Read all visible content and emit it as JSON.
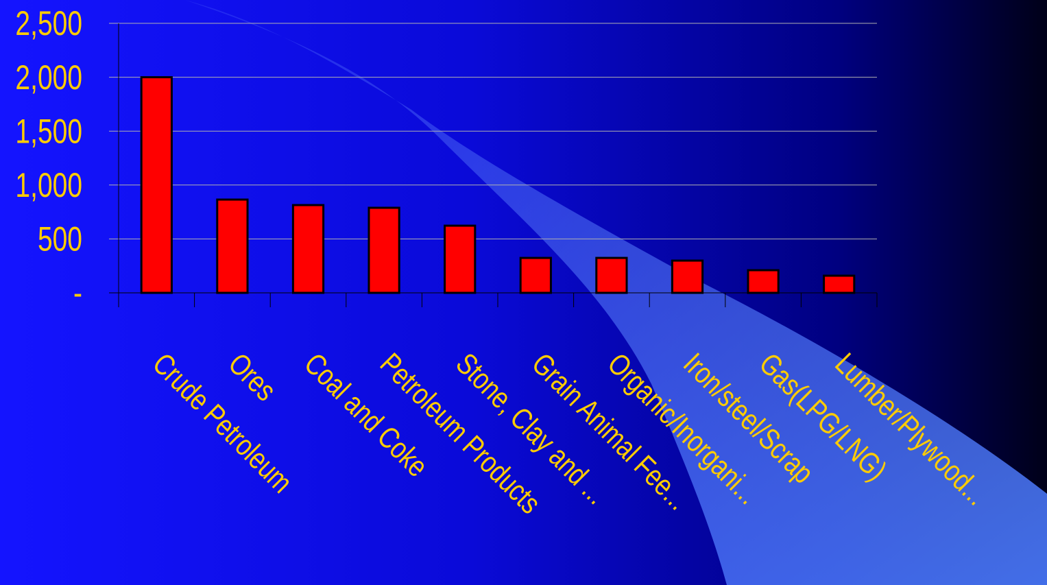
{
  "chart_data": {
    "type": "bar",
    "categories": [
      "Crude Petroleum",
      "Ores",
      "Coal and Coke",
      "Petroleum Products",
      "Stone, Clay and ...",
      "Grain Animal Fee...",
      "Organic/Inorgani...",
      "Iron/steel/Scrap",
      "Gas(LPG/LNG)",
      "Lumber/Plywood..."
    ],
    "values": [
      2000,
      865,
      814,
      789,
      623,
      324,
      324,
      299,
      210,
      159
    ],
    "color": "#ff0000",
    "ylim": [
      0,
      2500
    ],
    "yticks": [
      {
        "value": 0,
        "label": "-"
      },
      500,
      {
        "value": 1000,
        "label": "1,000"
      },
      {
        "value": 1500,
        "label": "1,500"
      },
      {
        "value": 2000,
        "label": "2,000"
      },
      {
        "value": 2500,
        "label": "2,500"
      }
    ],
    "grid": true
  }
}
